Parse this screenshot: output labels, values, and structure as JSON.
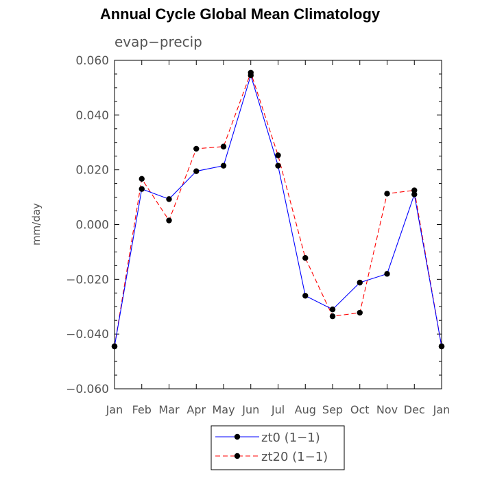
{
  "title": "Annual Cycle Global Mean Climatology",
  "chart_data": {
    "type": "line",
    "title": "Annual Cycle Global Mean Climatology",
    "subtitle": "evap−precip",
    "xlabel": "",
    "ylabel": "mm/day",
    "categories": [
      "Jan",
      "Feb",
      "Mar",
      "Apr",
      "May",
      "Jun",
      "Jul",
      "Aug",
      "Sep",
      "Oct",
      "Nov",
      "Dec",
      "Jan"
    ],
    "ylim": [
      -0.06,
      0.06
    ],
    "y_ticks": [
      -0.06,
      -0.04,
      -0.02,
      0.0,
      0.02,
      0.04,
      0.06
    ],
    "y_tick_labels": [
      "−0.060",
      "−0.040",
      "−0.020",
      "0.000",
      "0.020",
      "0.040",
      "0.060"
    ],
    "grid": false,
    "legend_position": "bottom-center",
    "series": [
      {
        "name": "zt0 (1−1)",
        "color": "#0000ff",
        "dash": "solid",
        "values": [
          -0.0445,
          0.013,
          0.0093,
          0.0195,
          0.0215,
          0.0545,
          0.0215,
          -0.026,
          -0.031,
          -0.0212,
          -0.018,
          0.011,
          -0.0445
        ]
      },
      {
        "name": "zt20 (1−1)",
        "color": "#ff0000",
        "dash": "dashed",
        "values": [
          -0.0445,
          0.0167,
          0.0015,
          0.0277,
          0.0285,
          0.0555,
          0.0253,
          -0.0122,
          -0.0335,
          -0.0322,
          0.0113,
          0.0125,
          -0.0445
        ]
      }
    ]
  }
}
